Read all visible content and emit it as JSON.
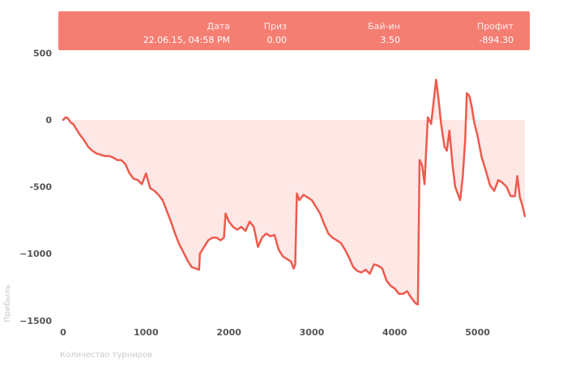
{
  "tooltip": {
    "headers": {
      "date": "Дата",
      "prize": "Приз",
      "buyin": "Бай-ин",
      "profit": "Профит"
    },
    "values": {
      "date": "22.06.15, 04:58 PM",
      "prize": "0.00",
      "buyin": "3.50",
      "profit": "-894.30"
    }
  },
  "chart_data": {
    "type": "area",
    "title": "",
    "xlabel": "Количество турниров",
    "ylabel": "Прибыль",
    "xlim": [
      0,
      5600
    ],
    "ylim": [
      -1500,
      600
    ],
    "x_ticks": [
      0,
      1000,
      2000,
      3000,
      4000,
      5000
    ],
    "x_tick_labels": [
      "0",
      "1000",
      "2000",
      "3000",
      "4000",
      "5000"
    ],
    "y_ticks": [
      500,
      0,
      -500,
      -1000,
      -1500
    ],
    "y_tick_labels": [
      "500",
      "0",
      "-500",
      "−1000",
      "−1500"
    ],
    "series": [
      {
        "color": "#ee5a4d",
        "fill": "#fde8e6",
        "points": [
          [
            0,
            0
          ],
          [
            30,
            20
          ],
          [
            60,
            10
          ],
          [
            90,
            -20
          ],
          [
            120,
            -30
          ],
          [
            150,
            -60
          ],
          [
            200,
            -110
          ],
          [
            250,
            -150
          ],
          [
            300,
            -200
          ],
          [
            350,
            -230
          ],
          [
            400,
            -250
          ],
          [
            450,
            -260
          ],
          [
            500,
            -270
          ],
          [
            550,
            -270
          ],
          [
            600,
            -280
          ],
          [
            650,
            -300
          ],
          [
            700,
            -300
          ],
          [
            750,
            -330
          ],
          [
            800,
            -400
          ],
          [
            850,
            -440
          ],
          [
            900,
            -450
          ],
          [
            950,
            -480
          ],
          [
            1000,
            -400
          ],
          [
            1050,
            -510
          ],
          [
            1100,
            -530
          ],
          [
            1150,
            -560
          ],
          [
            1200,
            -600
          ],
          [
            1250,
            -680
          ],
          [
            1300,
            -760
          ],
          [
            1350,
            -850
          ],
          [
            1400,
            -930
          ],
          [
            1450,
            -990
          ],
          [
            1500,
            -1050
          ],
          [
            1550,
            -1100
          ],
          [
            1600,
            -1110
          ],
          [
            1640,
            -1120
          ],
          [
            1650,
            -1000
          ],
          [
            1700,
            -950
          ],
          [
            1750,
            -900
          ],
          [
            1800,
            -880
          ],
          [
            1850,
            -880
          ],
          [
            1900,
            -900
          ],
          [
            1940,
            -880
          ],
          [
            1960,
            -700
          ],
          [
            2000,
            -760
          ],
          [
            2050,
            -800
          ],
          [
            2100,
            -820
          ],
          [
            2150,
            -800
          ],
          [
            2200,
            -830
          ],
          [
            2250,
            -760
          ],
          [
            2300,
            -800
          ],
          [
            2350,
            -950
          ],
          [
            2400,
            -880
          ],
          [
            2450,
            -850
          ],
          [
            2500,
            -870
          ],
          [
            2550,
            -860
          ],
          [
            2600,
            -970
          ],
          [
            2650,
            -1020
          ],
          [
            2700,
            -1040
          ],
          [
            2750,
            -1060
          ],
          [
            2780,
            -1110
          ],
          [
            2800,
            -1080
          ],
          [
            2820,
            -550
          ],
          [
            2850,
            -600
          ],
          [
            2900,
            -560
          ],
          [
            2950,
            -580
          ],
          [
            3000,
            -600
          ],
          [
            3050,
            -650
          ],
          [
            3100,
            -700
          ],
          [
            3150,
            -780
          ],
          [
            3200,
            -850
          ],
          [
            3250,
            -880
          ],
          [
            3300,
            -900
          ],
          [
            3350,
            -920
          ],
          [
            3400,
            -970
          ],
          [
            3450,
            -1030
          ],
          [
            3500,
            -1100
          ],
          [
            3550,
            -1130
          ],
          [
            3600,
            -1140
          ],
          [
            3650,
            -1120
          ],
          [
            3700,
            -1150
          ],
          [
            3750,
            -1080
          ],
          [
            3800,
            -1090
          ],
          [
            3850,
            -1110
          ],
          [
            3900,
            -1200
          ],
          [
            3950,
            -1240
          ],
          [
            4000,
            -1260
          ],
          [
            4050,
            -1300
          ],
          [
            4100,
            -1300
          ],
          [
            4150,
            -1280
          ],
          [
            4200,
            -1330
          ],
          [
            4250,
            -1370
          ],
          [
            4280,
            -1380
          ],
          [
            4300,
            -300
          ],
          [
            4330,
            -340
          ],
          [
            4360,
            -480
          ],
          [
            4400,
            20
          ],
          [
            4440,
            -30
          ],
          [
            4470,
            140
          ],
          [
            4500,
            300
          ],
          [
            4530,
            150
          ],
          [
            4560,
            -30
          ],
          [
            4600,
            -200
          ],
          [
            4630,
            -230
          ],
          [
            4660,
            -80
          ],
          [
            4700,
            -350
          ],
          [
            4730,
            -500
          ],
          [
            4760,
            -550
          ],
          [
            4790,
            -600
          ],
          [
            4820,
            -430
          ],
          [
            4850,
            -150
          ],
          [
            4870,
            200
          ],
          [
            4900,
            180
          ],
          [
            4930,
            100
          ],
          [
            4960,
            -20
          ],
          [
            5000,
            -120
          ],
          [
            5050,
            -280
          ],
          [
            5100,
            -380
          ],
          [
            5150,
            -490
          ],
          [
            5200,
            -530
          ],
          [
            5250,
            -450
          ],
          [
            5300,
            -470
          ],
          [
            5350,
            -500
          ],
          [
            5400,
            -570
          ],
          [
            5450,
            -570
          ],
          [
            5480,
            -420
          ],
          [
            5510,
            -580
          ],
          [
            5540,
            -640
          ],
          [
            5570,
            -720
          ]
        ]
      }
    ],
    "grid": false,
    "area_baseline": 0
  }
}
